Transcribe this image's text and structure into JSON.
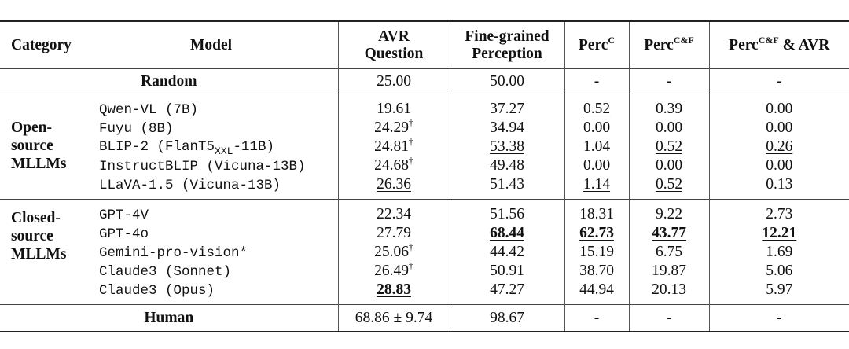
{
  "headers": {
    "category": "Category",
    "model": "Model",
    "avr_l1": "AVR",
    "avr_l2": "Question",
    "fg_l1": "Fine-grained",
    "fg_l2": "Perception",
    "perc": "Perc",
    "perc_c_sup": "C",
    "perc_cf_sup": "C&F",
    "perc_cf_avr_tail": " & AVR"
  },
  "random": {
    "label": "Random",
    "avr": "25.00",
    "fg": "50.00",
    "pc": "-",
    "pcf": "-",
    "pcfavr": "-"
  },
  "groups": [
    {
      "category_lines": [
        "Open-",
        "source",
        "MLLMs"
      ],
      "rows": [
        {
          "model": "Qwen-VL (7B)",
          "avr": "19.61",
          "avr_mark": "",
          "fg": "37.27",
          "pc": "0.52",
          "pcf": "0.39",
          "pcfavr": "0.00"
        },
        {
          "model": "Fuyu (8B)",
          "avr": "24.29",
          "avr_mark": "†",
          "fg": "34.94",
          "pc": "0.00",
          "pcf": "0.00",
          "pcfavr": "0.00"
        },
        {
          "model_pre": "BLIP-2 (FlanT5",
          "model_sub": "XXL",
          "model_post": "-11B)",
          "avr": "24.81",
          "avr_mark": "†",
          "fg": "53.38",
          "pc": "1.04",
          "pcf": "0.52",
          "pcfavr": "0.26"
        },
        {
          "model": "InstructBLIP (Vicuna-13B)",
          "avr": "24.68",
          "avr_mark": "†",
          "fg": "49.48",
          "pc": "0.00",
          "pcf": "0.00",
          "pcfavr": "0.00"
        },
        {
          "model": "LLaVA-1.5 (Vicuna-13B)",
          "avr": "26.36",
          "avr_mark": "",
          "fg": "51.43",
          "pc": "1.14",
          "pcf": "0.52",
          "pcfavr": "0.13"
        }
      ]
    },
    {
      "category_lines": [
        "Closed-",
        "source",
        "MLLMs"
      ],
      "rows": [
        {
          "model": "GPT-4V",
          "avr": "22.34",
          "avr_mark": "",
          "fg": "51.56",
          "pc": "18.31",
          "pcf": "9.22",
          "pcfavr": "2.73"
        },
        {
          "model": "GPT-4o",
          "avr": "27.79",
          "avr_mark": "",
          "fg": "68.44",
          "pc": "62.73",
          "pcf": "43.77",
          "pcfavr": "12.21"
        },
        {
          "model": "Gemini-pro-vision*",
          "avr": "25.06",
          "avr_mark": "†",
          "fg": "44.42",
          "pc": "15.19",
          "pcf": "6.75",
          "pcfavr": "1.69"
        },
        {
          "model": "Claude3 (Sonnet)",
          "avr": "26.49",
          "avr_mark": "†",
          "fg": "50.91",
          "pc": "38.70",
          "pcf": "19.87",
          "pcfavr": "5.06"
        },
        {
          "model": "Claude3 (Opus)",
          "avr": "28.83",
          "avr_mark": "",
          "fg": "47.27",
          "pc": "44.94",
          "pcf": "20.13",
          "pcfavr": "5.97"
        }
      ]
    }
  ],
  "human": {
    "label": "Human",
    "avr": "68.86 ± 9.74",
    "fg": "98.67",
    "pc": "-",
    "pcf": "-",
    "pcfavr": "-"
  }
}
